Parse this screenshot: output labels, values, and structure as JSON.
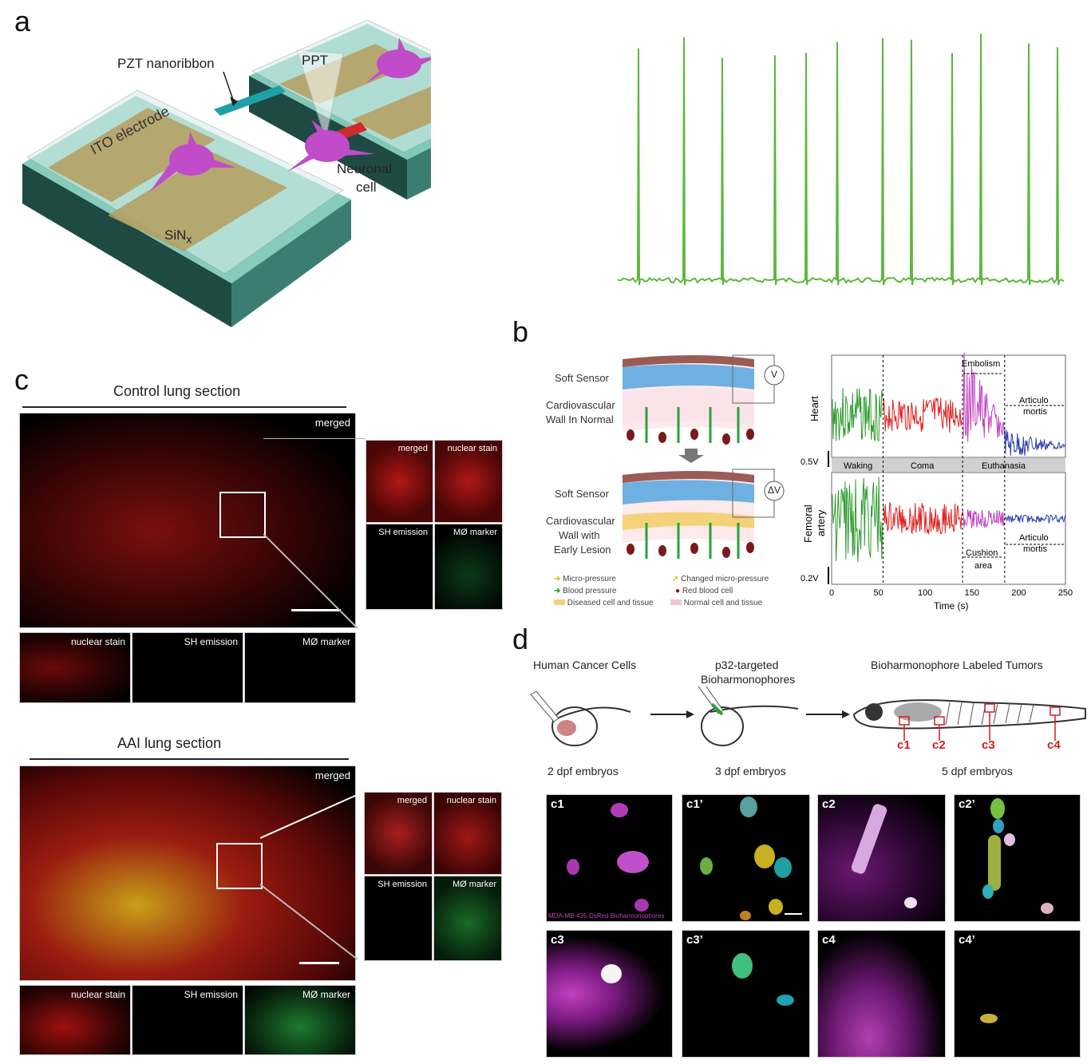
{
  "panel_letters": {
    "a": "a",
    "b": "b",
    "c": "c",
    "d": "d"
  },
  "panel_a": {
    "labels": {
      "pzt": "PZT nanoribbon",
      "ppt": "PPT",
      "ito": "ITO electrode",
      "neuronal": "Neuronal",
      "cell": "cell",
      "sin": "SiN",
      "sin_sub": "x"
    },
    "trace_color": "#5cb83c"
  },
  "panel_b": {
    "left": {
      "soft_sensor_1": "Soft Sensor",
      "cardio_normal_1": "Cardiovascular",
      "cardio_normal_2": "Wall In Normal",
      "v_label": "V",
      "soft_sensor_2": "Soft Sensor",
      "cardio_lesion_1": "Cardiovascular",
      "cardio_lesion_2": "Wall with",
      "cardio_lesion_3": "Early Lesion",
      "dv_label": "ΔV",
      "legend": {
        "micro_pressure": "Micro-pressure",
        "changed_micro_pressure": "Changed micro-pressure",
        "blood_pressure": "Blood pressure",
        "red_blood_cell": "Red blood cell",
        "diseased": "Diseased cell and tissue",
        "normal": "Normal cell and tissue"
      }
    },
    "chart": {
      "heart_label": "Heart",
      "femoral_label_1": "Femoral",
      "femoral_label_2": "artery",
      "scale_heart": "0.5V",
      "scale_femoral": "0.2V",
      "embolism": "Embolism",
      "articulo_1": "Articulo",
      "mortis_1": "mortis",
      "articulo_2": "Articulo",
      "mortis_2": "mortis",
      "cushion_1": "Cushion",
      "cushion_2": "area",
      "phase_waking": "Waking",
      "phase_coma": "Coma",
      "phase_euthanasia": "Euthanasia",
      "xlabel": "Time (s)"
    }
  },
  "chart_data": {
    "type": "line",
    "xlabel": "Time (s)",
    "xlim": [
      0,
      250
    ],
    "x_ticks": [
      0,
      50,
      100,
      150,
      200,
      250
    ],
    "phases": [
      {
        "name": "Waking",
        "start": 0,
        "end": 55,
        "color": "#2e9b2e"
      },
      {
        "name": "Coma",
        "start": 55,
        "end": 140,
        "color": "#e02020"
      },
      {
        "name": "Euthanasia",
        "start": 140,
        "end": 250
      }
    ],
    "segment_colors": [
      "#2e9b2e",
      "#e02020",
      "#c040c0",
      "#3040b0"
    ],
    "markers": [
      55,
      140,
      185
    ]
  },
  "panel_c": {
    "control_title": "Control lung section",
    "aai_title": "AAI lung section",
    "merged": "merged",
    "nuclear_stain": "nuclear stain",
    "sh_emission": "SH emission",
    "mo_marker": "MØ marker"
  },
  "panel_d": {
    "step1": "Human Cancer Cells",
    "step2_1": "p32-targeted",
    "step2_2": "Bioharmonophores",
    "step3": "Bioharmonophore Labeled Tumors",
    "emb1": "2 dpf embryos",
    "emb2": "3 dpf embryos",
    "emb3": "5 dpf embryos",
    "c_labels": [
      "c1",
      "c2",
      "c3",
      "c4"
    ],
    "tiles": [
      "c1",
      "c1’",
      "c2",
      "c2’",
      "c3",
      "c3’",
      "c4",
      "c4’"
    ],
    "c1_caption": "MDA-MB-435-DsRed Bioharmonophores"
  }
}
